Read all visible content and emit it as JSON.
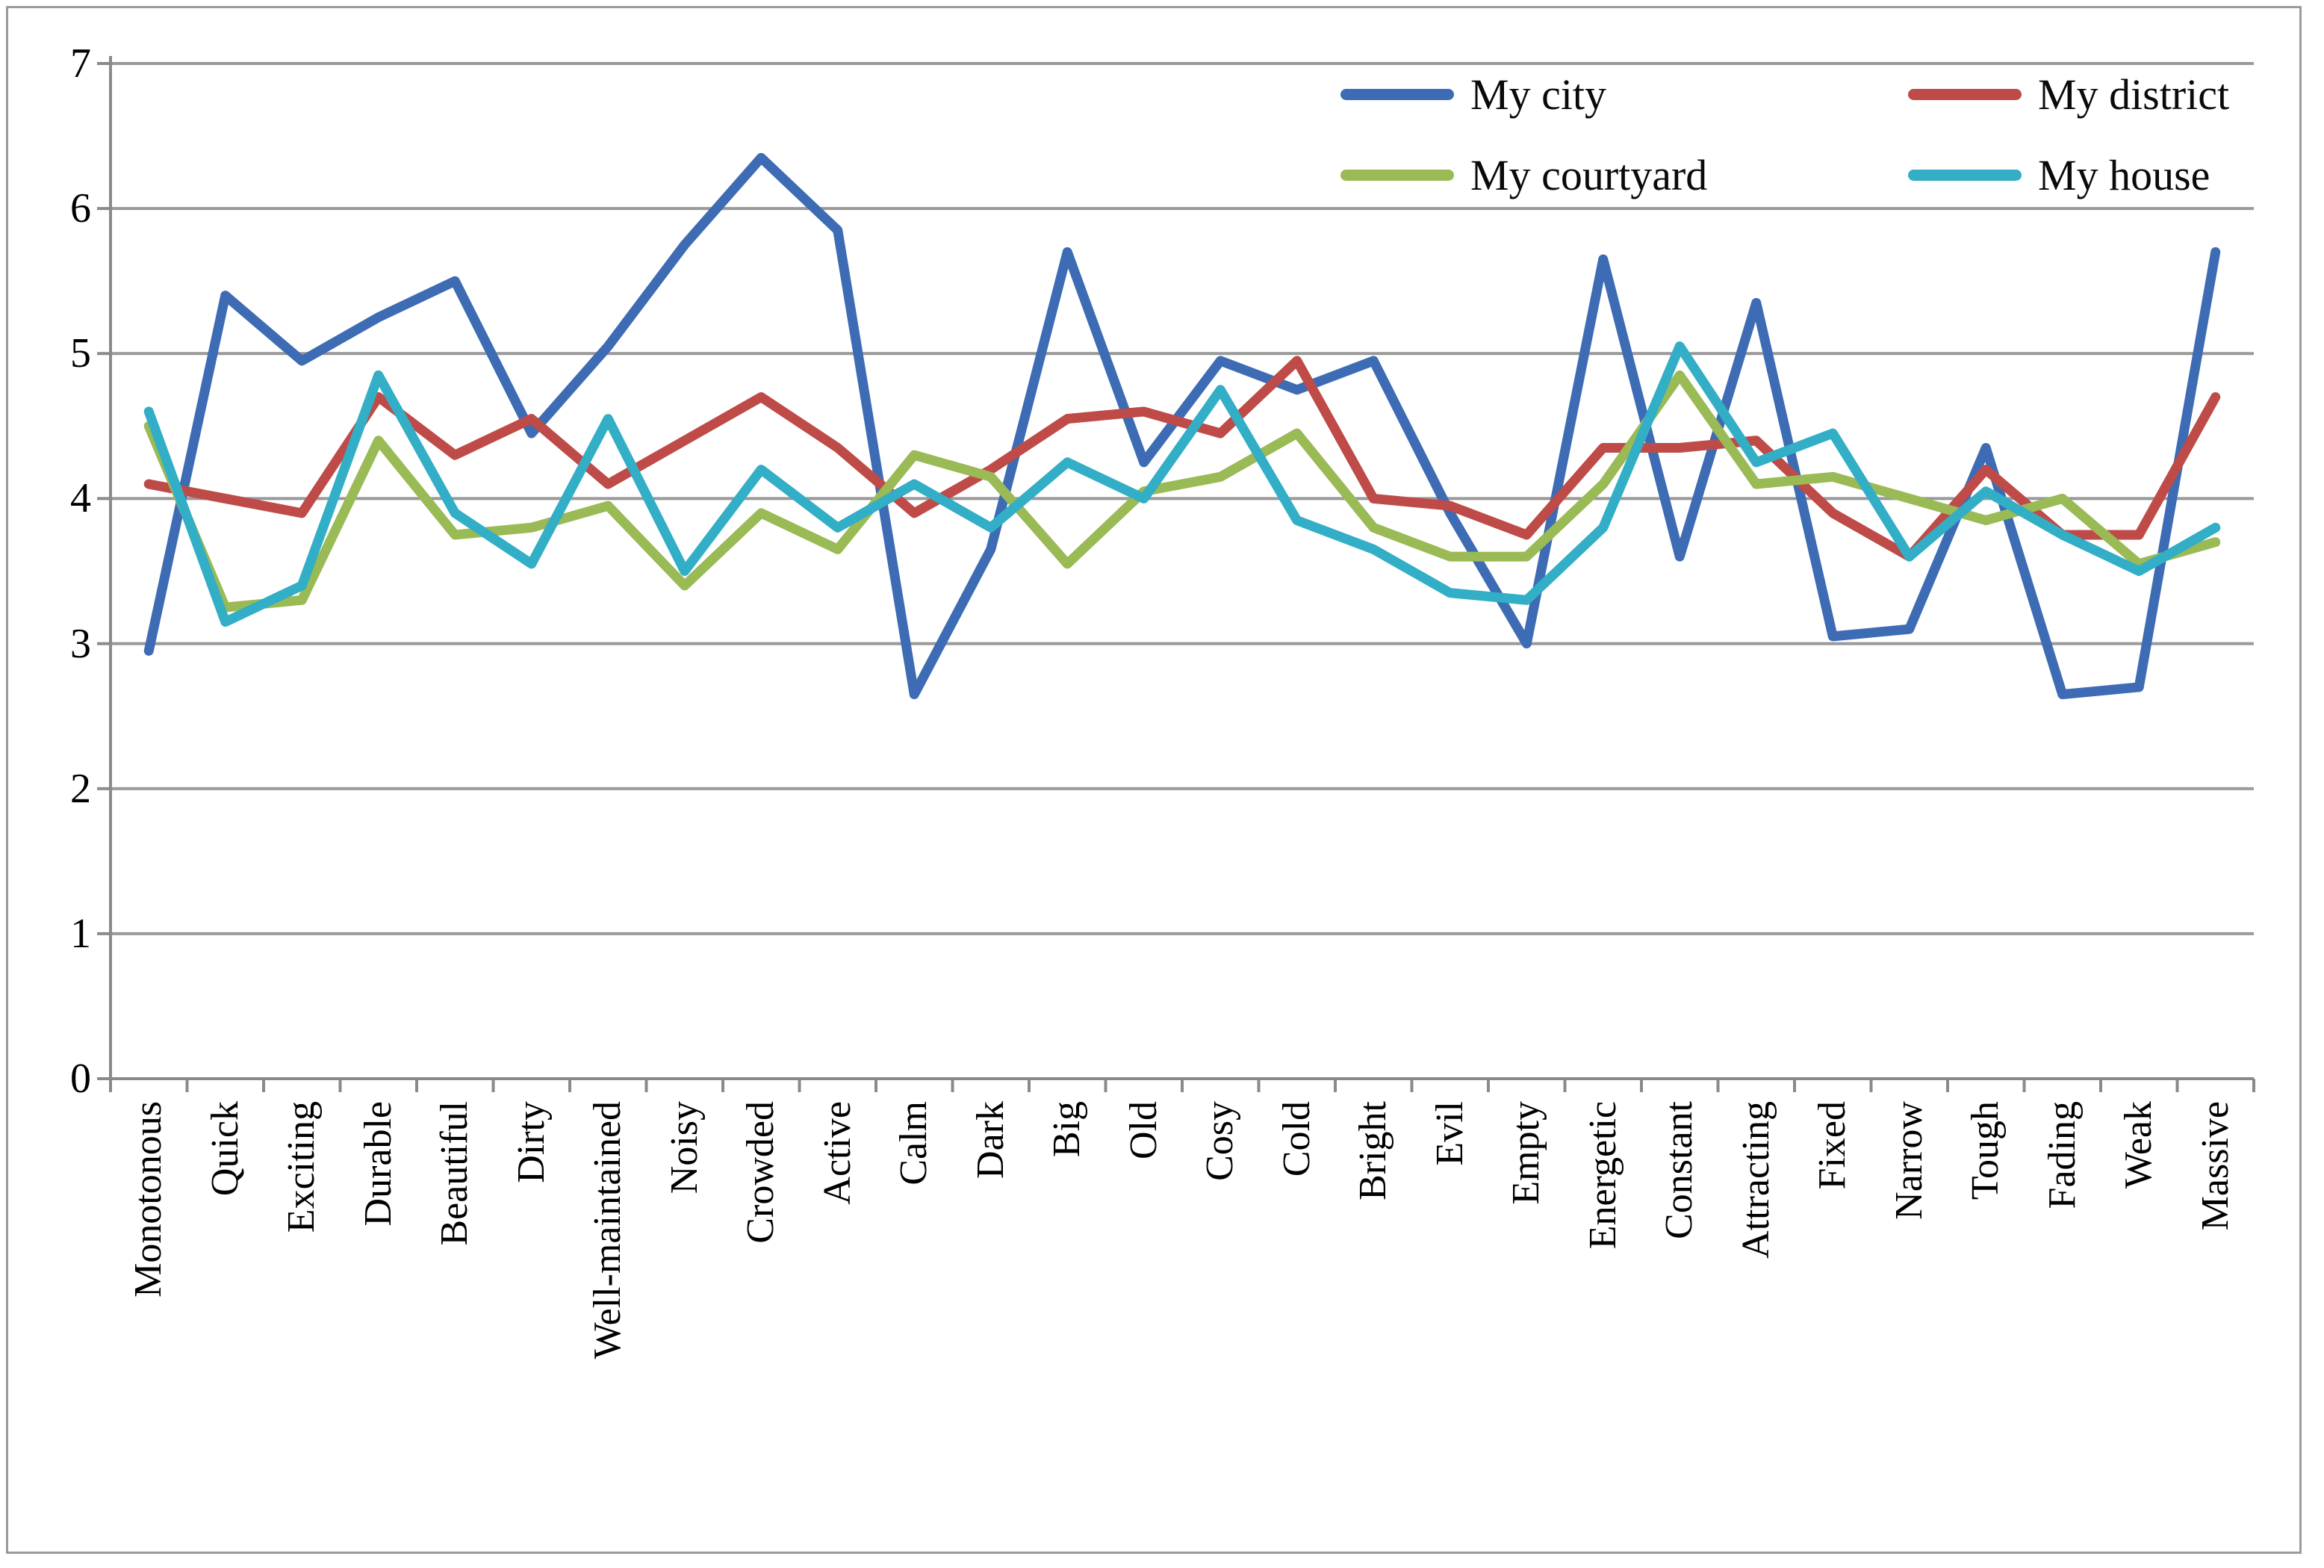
{
  "figure": {
    "background": "#ffffff",
    "frame_color": "#9b9b9b",
    "gridline_color": "#999999",
    "axis_color": "#8a8a8a",
    "text_color": "#000000"
  },
  "chart_data": {
    "type": "line",
    "title": "",
    "xlabel": "",
    "ylabel": "",
    "ylim": [
      0,
      7
    ],
    "yticks": [
      0,
      1,
      2,
      3,
      4,
      5,
      6,
      7
    ],
    "grid": "horizontal",
    "legend_position": "top-right-inside",
    "categories": [
      "Monotonous",
      "Quick",
      "Exciting",
      "Durable",
      "Beautiful",
      "Dirty",
      "Well-maintained",
      "Noisy",
      "Crowded",
      "Active",
      "Calm",
      "Dark",
      "Big",
      "Old",
      "Cosy",
      "Cold",
      "Bright",
      "Evil",
      "Empty",
      "Energetic",
      "Constant",
      "Attracting",
      "Fixed",
      "Narrow",
      "Tough",
      "Fading",
      "Weak",
      "Massive"
    ],
    "series": [
      {
        "name": "My city",
        "color": "#3d6cb4",
        "values": [
          2.95,
          5.4,
          4.95,
          5.25,
          5.5,
          4.45,
          5.05,
          5.75,
          6.35,
          5.85,
          2.65,
          3.65,
          5.7,
          4.25,
          4.95,
          4.75,
          4.95,
          3.9,
          3.0,
          5.65,
          3.6,
          5.35,
          3.05,
          3.1,
          4.35,
          2.65,
          2.7,
          5.7
        ]
      },
      {
        "name": "My district",
        "color": "#be4b48",
        "values": [
          4.1,
          4.0,
          3.9,
          4.7,
          4.3,
          4.55,
          4.1,
          4.4,
          4.7,
          4.35,
          3.9,
          4.2,
          4.55,
          4.6,
          4.45,
          4.95,
          4.0,
          3.95,
          3.75,
          4.35,
          4.35,
          4.4,
          3.9,
          3.6,
          4.2,
          3.75,
          3.75,
          4.7
        ]
      },
      {
        "name": "My courtyard",
        "color": "#99ba55",
        "values": [
          4.5,
          3.25,
          3.3,
          4.4,
          3.75,
          3.8,
          3.95,
          3.4,
          3.9,
          3.65,
          4.3,
          4.15,
          3.55,
          4.05,
          4.15,
          4.45,
          3.8,
          3.6,
          3.6,
          4.1,
          4.85,
          4.1,
          4.15,
          4.0,
          3.85,
          4.0,
          3.55,
          3.7
        ]
      },
      {
        "name": "My house",
        "color": "#32aec6",
        "values": [
          4.6,
          3.15,
          3.4,
          4.85,
          3.9,
          3.55,
          4.55,
          3.5,
          4.2,
          3.8,
          4.1,
          3.8,
          4.25,
          4.0,
          4.75,
          3.85,
          3.65,
          3.35,
          3.3,
          3.8,
          5.05,
          4.25,
          4.45,
          3.6,
          4.05,
          3.75,
          3.5,
          3.8
        ]
      }
    ]
  }
}
